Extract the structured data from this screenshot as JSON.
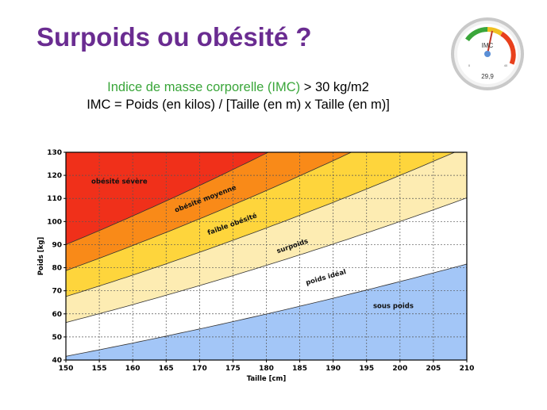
{
  "slide": {
    "title": "Surpoids ou obésité ?",
    "imc_prefix": "Indice de masse corporelle (IMC)",
    "imc_threshold": "> 30 kg/m2",
    "formula": "IMC = Poids (en kilos) / [Taille (en m) x Taille (en m)]"
  },
  "gauge": {
    "label": "IMC",
    "value": "29,9",
    "scale_min": "0",
    "scale_max": "40"
  },
  "chart_data": {
    "type": "area",
    "xlabel": "Taille [cm]",
    "ylabel": "Poids [kg]",
    "xlim": [
      150,
      210
    ],
    "ylim": [
      40,
      130
    ],
    "xticks": [
      150,
      155,
      160,
      165,
      170,
      175,
      180,
      185,
      190,
      195,
      200,
      205,
      210
    ],
    "yticks": [
      40,
      50,
      60,
      70,
      80,
      90,
      100,
      110,
      120,
      130
    ],
    "grid": true,
    "boundaries_bmi": [
      18.5,
      25,
      30,
      35,
      40
    ],
    "zones": [
      {
        "name": "sous poids",
        "bmi_min": 0,
        "bmi_max": 18.5,
        "color": "#a3c6f7"
      },
      {
        "name": "poids idéal",
        "bmi_min": 18.5,
        "bmi_max": 25,
        "color": "#ffffff"
      },
      {
        "name": "surpoids",
        "bmi_min": 25,
        "bmi_max": 30,
        "color": "#fdecb2"
      },
      {
        "name": "faible obésité",
        "bmi_min": 30,
        "bmi_max": 35,
        "color": "#fed53c"
      },
      {
        "name": "obésité moyenne",
        "bmi_min": 35,
        "bmi_max": 40,
        "color": "#f98a18"
      },
      {
        "name": "obésité sévère",
        "bmi_min": 40,
        "bmi_max": 999,
        "color": "#f0301a"
      }
    ],
    "labels": [
      {
        "text": "sous poids",
        "x": 199,
        "y": 62.5,
        "angle": 0
      },
      {
        "text": "poids idéal",
        "x": 189,
        "y": 75,
        "angle": -16
      },
      {
        "text": "surpoids",
        "x": 184,
        "y": 88.5,
        "angle": -19
      },
      {
        "text": "faible obésité",
        "x": 175,
        "y": 98,
        "angle": -20
      },
      {
        "text": "obésité moyenne",
        "x": 171,
        "y": 109,
        "angle": -21
      },
      {
        "text": "obésité sévère",
        "x": 158,
        "y": 116.5,
        "angle": 0
      }
    ]
  }
}
